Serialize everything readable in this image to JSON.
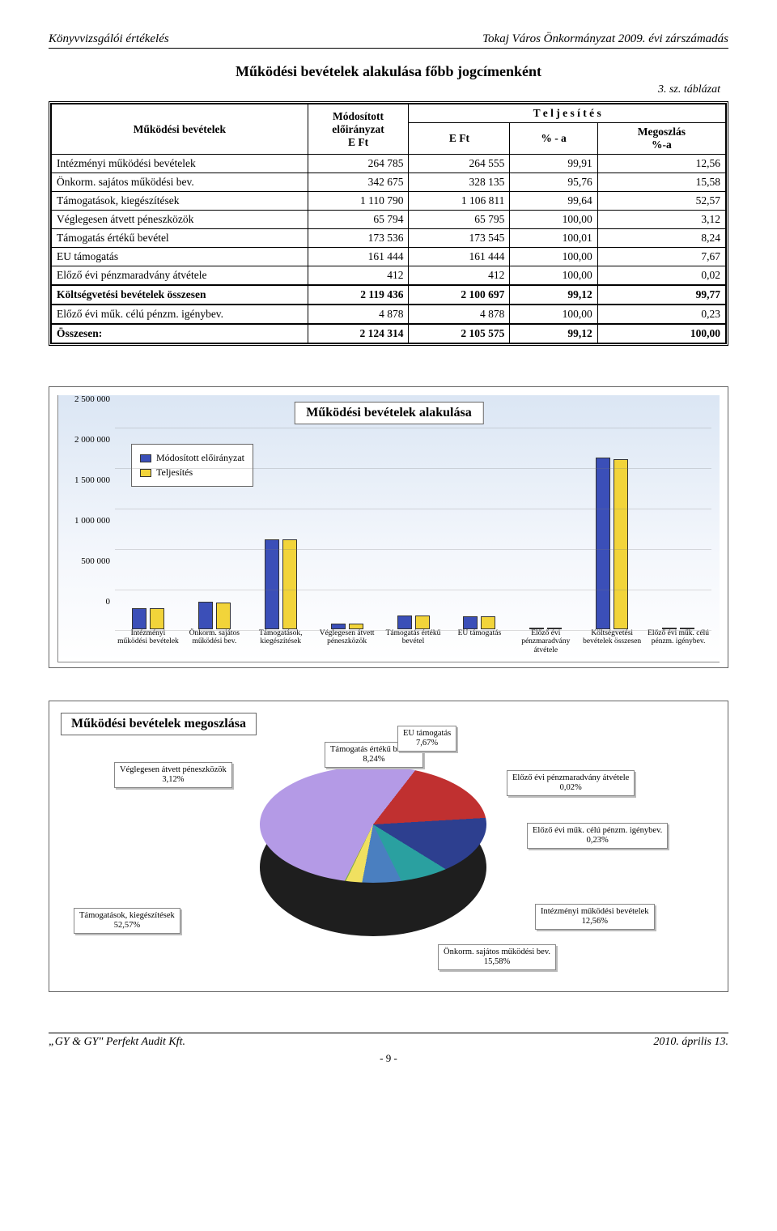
{
  "header": {
    "left": "Könyvvizsgálói értékelés",
    "right": "Tokaj Város Önkormányzat 2009. évi zárszámadás"
  },
  "title": "Működési bevételek alakulása főbb jogcímenként",
  "subtitle": "3. sz. táblázat",
  "table": {
    "col_headers": {
      "c1": "Működési bevételek",
      "c2_line1": "Módosított",
      "c2_line2": "előirányzat",
      "c2_line3": "E Ft",
      "c3": "T e l j e s í t é s",
      "c3a": "E Ft",
      "c3b": "% - a",
      "c3c_line1": "Megoszlás",
      "c3c_line2": "%-a"
    },
    "rows": [
      {
        "label": "Intézményi működési bevételek",
        "v1": "264 785",
        "v2": "264 555",
        "v3": "99,91",
        "v4": "12,56"
      },
      {
        "label": "Önkorm. sajátos működési bev.",
        "v1": "342 675",
        "v2": "328 135",
        "v3": "95,76",
        "v4": "15,58"
      },
      {
        "label": "Támogatások, kiegészítések",
        "v1": "1 110 790",
        "v2": "1 106 811",
        "v3": "99,64",
        "v4": "52,57"
      },
      {
        "label": "Véglegesen átvett péneszközök",
        "v1": "65 794",
        "v2": "65 795",
        "v3": "100,00",
        "v4": "3,12"
      },
      {
        "label": "Támogatás értékű bevétel",
        "v1": "173 536",
        "v2": "173 545",
        "v3": "100,01",
        "v4": "8,24"
      },
      {
        "label": "EU támogatás",
        "v1": "161 444",
        "v2": "161 444",
        "v3": "100,00",
        "v4": "7,67"
      },
      {
        "label": "Előző évi pénzmaradvány átvétele",
        "v1": "412",
        "v2": "412",
        "v3": "100,00",
        "v4": "0,02"
      }
    ],
    "subtotal": {
      "label": "Költségvetési bevételek összesen",
      "v1": "2 119 436",
      "v2": "2 100 697",
      "v3": "99,12",
      "v4": "99,77"
    },
    "row8": {
      "label": "Előző évi műk. célú pénzm. igénybev.",
      "v1": "4 878",
      "v2": "4 878",
      "v3": "100,00",
      "v4": "0,23"
    },
    "total": {
      "label": "Összesen:",
      "v1": "2 124 314",
      "v2": "2 105 575",
      "v3": "99,12",
      "v4": "100,00"
    }
  },
  "bar_chart": {
    "type": "bar",
    "title": "Működési bevételek alakulása",
    "legend": [
      "Módosított előirányzat",
      "Teljesítés"
    ],
    "series_colors": [
      "#3b4fb8",
      "#f2d43a"
    ],
    "background_gradient": [
      "#dbe6f4",
      "#ffffff"
    ],
    "ylim": [
      0,
      2500000
    ],
    "ytick_step": 500000,
    "yticks": [
      "0",
      "500 000",
      "1 000 000",
      "1 500 000",
      "2 000 000",
      "2 500 000"
    ],
    "categories": [
      "Intézményi működési bevételek",
      "Önkorm. sajátos működési bev.",
      "Támogatások, kiegészítések",
      "Véglegesen átvett péneszközök",
      "Támogatás értékű bevétel",
      "EU támogatás",
      "Előző évi pénzmaradvány átvétele",
      "Költségvetési bevételek összesen",
      "Előző évi műk. célú pénzm. igénybev."
    ],
    "values_a": [
      264785,
      342675,
      1110790,
      65794,
      173536,
      161444,
      412,
      2119436,
      4878
    ],
    "values_b": [
      264555,
      328135,
      1106811,
      65795,
      173545,
      161444,
      412,
      2100697,
      4878
    ]
  },
  "pie_chart": {
    "type": "pie",
    "title": "Működési bevételek megoszlása",
    "slices": [
      {
        "label": "Támogatások, kiegészítések",
        "pct": "52,57%",
        "value": 52.57,
        "color": "#b49ae6"
      },
      {
        "label": "Önkorm. sajátos működési bev.",
        "pct": "15,58%",
        "value": 15.58,
        "color": "#c03030"
      },
      {
        "label": "Intézményi működési bevételek",
        "pct": "12,56%",
        "value": 12.56,
        "color": "#2d3f8f"
      },
      {
        "label": "Támogatás értékű bevétel",
        "pct": "8,24%",
        "value": 8.24,
        "color": "#2aa0a0"
      },
      {
        "label": "EU támogatás",
        "pct": "7,67%",
        "value": 7.67,
        "color": "#4a7fc0"
      },
      {
        "label": "Véglegesen átvett péneszközök",
        "pct": "3,12%",
        "value": 3.12,
        "color": "#f0e060"
      },
      {
        "label": "Előző évi műk. célú pénzm. igénybev.",
        "pct": "0,23%",
        "value": 0.23,
        "color": "#87b34a"
      },
      {
        "label": "Előző évi pénzmaradvány átvétele",
        "pct": "0,02%",
        "value": 0.02,
        "color": "#d88a3a"
      }
    ]
  },
  "footer": {
    "left": "„GY & GY\" Perfekt Audit Kft.",
    "right": "2010. április 13.",
    "page": "- 9 -"
  }
}
